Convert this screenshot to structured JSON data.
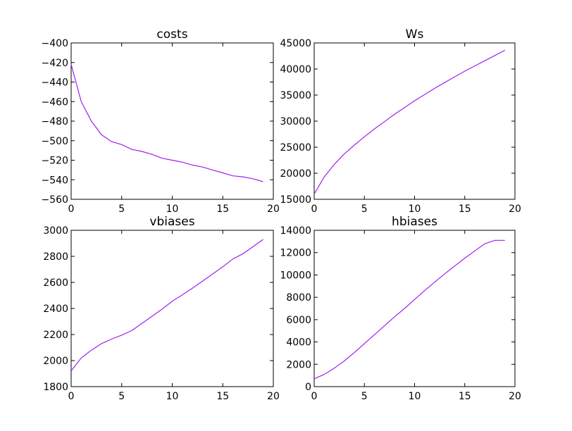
{
  "chart_data": [
    {
      "type": "line",
      "title": "costs",
      "xlim": [
        0,
        20
      ],
      "ylim": [
        -560,
        -400
      ],
      "xticks": [
        0,
        5,
        10,
        15,
        20
      ],
      "yticks": [
        -560,
        -540,
        -520,
        -500,
        -480,
        -460,
        -440,
        -420,
        -400
      ],
      "grid": false,
      "line_color": "#a020f0",
      "series": [
        {
          "x": [
            0,
            1,
            2,
            3,
            4,
            5,
            6,
            7,
            8,
            9,
            10,
            11,
            12,
            13,
            14,
            15,
            16,
            17,
            18,
            19
          ],
          "values": [
            -422,
            -460,
            -480,
            -494,
            -501,
            -504,
            -509,
            -511,
            -514,
            -518,
            -520,
            -522,
            -525,
            -527,
            -530,
            -533,
            -536,
            -537,
            -539,
            -542
          ]
        }
      ]
    },
    {
      "type": "line",
      "title": "Ws",
      "xlim": [
        0,
        20
      ],
      "ylim": [
        15000,
        45000
      ],
      "xticks": [
        0,
        5,
        10,
        15,
        20
      ],
      "yticks": [
        15000,
        20000,
        25000,
        30000,
        35000,
        40000,
        45000
      ],
      "grid": false,
      "line_color": "#a020f0",
      "series": [
        {
          "x": [
            0,
            1,
            2,
            3,
            4,
            5,
            6,
            7,
            8,
            9,
            10,
            11,
            12,
            13,
            14,
            15,
            16,
            17,
            18,
            19
          ],
          "values": [
            16000,
            19300,
            21700,
            23700,
            25400,
            27000,
            28500,
            29900,
            31300,
            32600,
            33900,
            35100,
            36300,
            37400,
            38500,
            39600,
            40600,
            41600,
            42600,
            43600
          ]
        }
      ]
    },
    {
      "type": "line",
      "title": "vbiases",
      "xlim": [
        0,
        20
      ],
      "ylim": [
        1800,
        3000
      ],
      "xticks": [
        0,
        5,
        10,
        15,
        20
      ],
      "yticks": [
        1800,
        2000,
        2200,
        2400,
        2600,
        2800,
        3000
      ],
      "grid": false,
      "line_color": "#a020f0",
      "series": [
        {
          "x": [
            0,
            1,
            2,
            3,
            4,
            5,
            6,
            7,
            8,
            9,
            10,
            11,
            12,
            13,
            14,
            15,
            16,
            17,
            18,
            19
          ],
          "values": [
            1920,
            2020,
            2080,
            2130,
            2165,
            2195,
            2230,
            2285,
            2340,
            2395,
            2455,
            2505,
            2555,
            2610,
            2665,
            2720,
            2780,
            2820,
            2875,
            2930
          ]
        }
      ]
    },
    {
      "type": "line",
      "title": "hbiases",
      "xlim": [
        0,
        20
      ],
      "ylim": [
        0,
        14000
      ],
      "xticks": [
        0,
        5,
        10,
        15,
        20
      ],
      "yticks": [
        0,
        2000,
        4000,
        6000,
        8000,
        10000,
        12000,
        14000
      ],
      "grid": false,
      "line_color": "#a020f0",
      "series": [
        {
          "x": [
            0,
            1,
            2,
            3,
            4,
            5,
            6,
            7,
            8,
            9,
            10,
            11,
            12,
            13,
            14,
            15,
            16,
            17,
            18,
            19
          ],
          "values": [
            700,
            1100,
            1650,
            2300,
            3050,
            3850,
            4650,
            5450,
            6250,
            7000,
            7800,
            8600,
            9350,
            10100,
            10800,
            11500,
            12150,
            12800,
            13100,
            13100
          ]
        }
      ]
    }
  ]
}
